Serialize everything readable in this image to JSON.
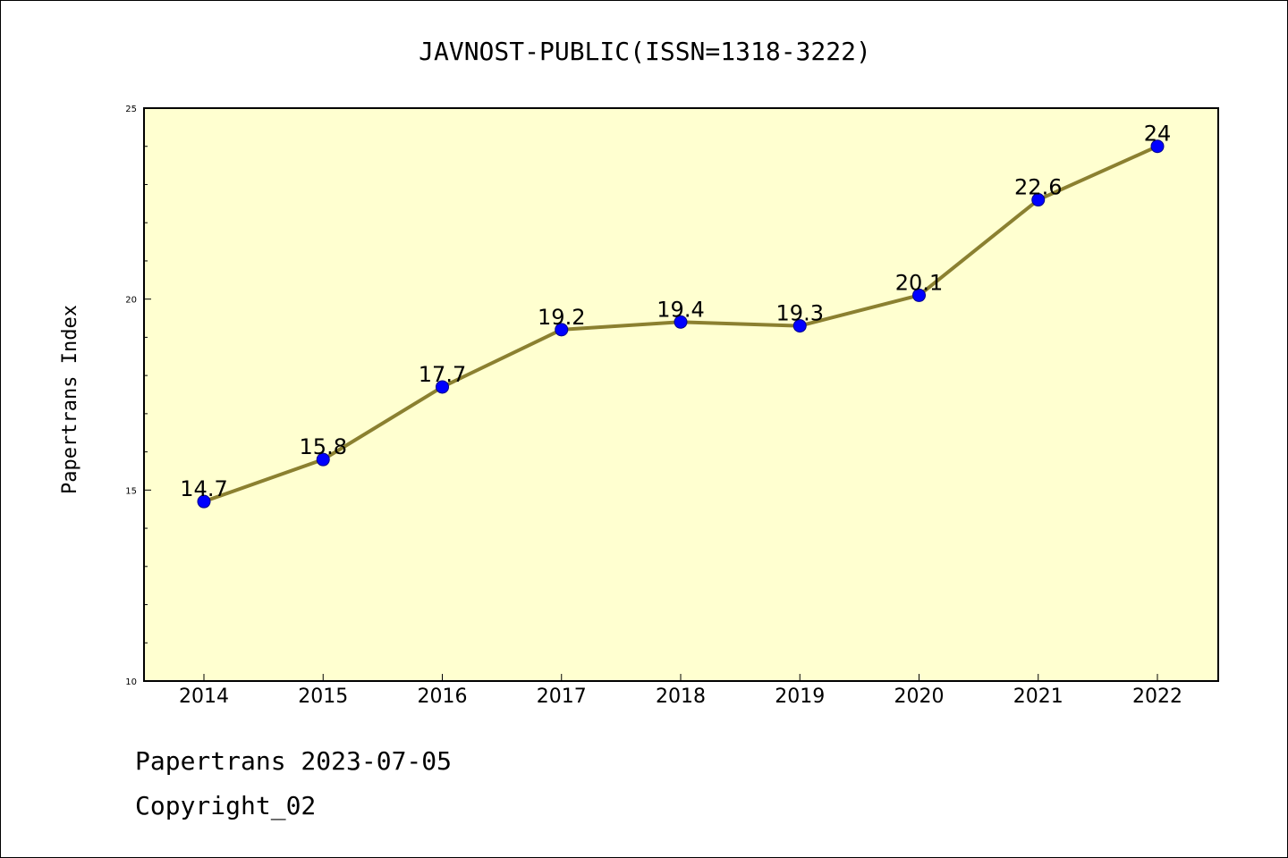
{
  "chart_data": {
    "type": "line",
    "title": "JAVNOST-PUBLIC(ISSN=1318-3222)",
    "xlabel": "",
    "ylabel": "Papertrans Index",
    "categories": [
      "2014",
      "2015",
      "2016",
      "2017",
      "2018",
      "2019",
      "2020",
      "2021",
      "2022"
    ],
    "series": [
      {
        "values": [
          14.7,
          15.8,
          17.7,
          19.2,
          19.4,
          19.3,
          20.1,
          22.6,
          24
        ],
        "data_labels": [
          "14.7",
          "15.8",
          "17.7",
          "19.2",
          "19.4",
          "19.3",
          "20.1",
          "22.6",
          "24"
        ]
      }
    ],
    "ylim": [
      10,
      25
    ],
    "yticks": [
      "10",
      "15",
      "20",
      "25"
    ],
    "grid": false,
    "legend": "none",
    "colors": {
      "plot_background": "#ffffd0",
      "line": "#8b8030",
      "marker": "#0000ff"
    }
  },
  "footer": {
    "date_line": "Papertrans 2023-07-05",
    "copyright": "Copyright_02"
  }
}
